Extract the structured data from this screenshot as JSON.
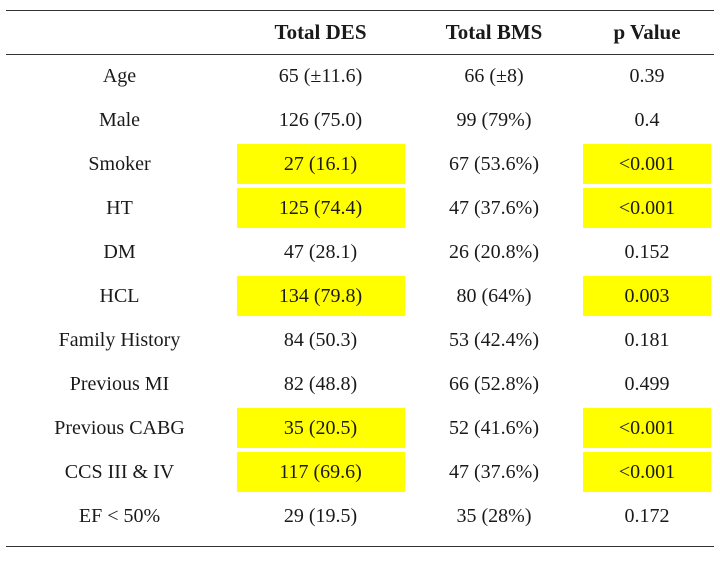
{
  "table": {
    "headers": [
      "",
      "Total DES",
      "Total BMS",
      "p Value"
    ],
    "highlight_color": "#ffff00",
    "rows": [
      {
        "label": "Age",
        "des": "65 (±11.6)",
        "bms": "66 (±8)",
        "p": "0.39",
        "highlight": false
      },
      {
        "label": "Male",
        "des": "126 (75.0)",
        "bms": "99 (79%)",
        "p": "0.4",
        "highlight": false
      },
      {
        "label": "Smoker",
        "des": "27 (16.1)",
        "bms": "67 (53.6%)",
        "p": "<0.001",
        "highlight": true
      },
      {
        "label": "HT",
        "des": "125 (74.4)",
        "bms": "47 (37.6%)",
        "p": "<0.001",
        "highlight": true
      },
      {
        "label": "DM",
        "des": "47 (28.1)",
        "bms": "26 (20.8%)",
        "p": "0.152",
        "highlight": false
      },
      {
        "label": "HCL",
        "des": "134 (79.8)",
        "bms": "80 (64%)",
        "p": "0.003",
        "highlight": true
      },
      {
        "label": "Family History",
        "des": "84 (50.3)",
        "bms": "53 (42.4%)",
        "p": "0.181",
        "highlight": false
      },
      {
        "label": "Previous MI",
        "des": "82 (48.8)",
        "bms": "66 (52.8%)",
        "p": "0.499",
        "highlight": false
      },
      {
        "label": "Previous CABG",
        "des": "35 (20.5)",
        "bms": "52 (41.6%)",
        "p": "<0.001",
        "highlight": true
      },
      {
        "label": "CCS III & IV",
        "des": "117 (69.6)",
        "bms": "47 (37.6%)",
        "p": "<0.001",
        "highlight": true
      },
      {
        "label": "EF < 50%",
        "des": "29 (19.5)",
        "bms": "35 (28%)",
        "p": "0.172",
        "highlight": false
      }
    ]
  }
}
